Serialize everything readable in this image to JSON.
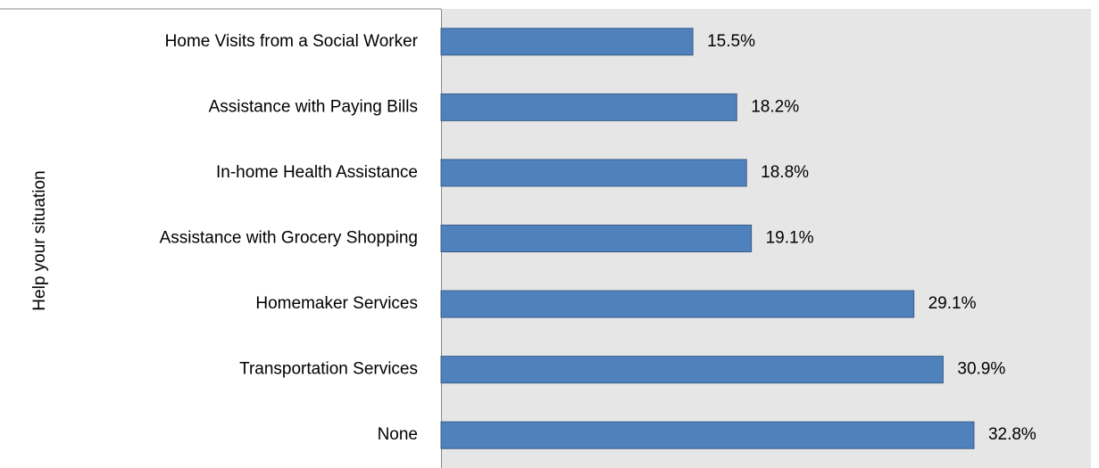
{
  "chart_data": {
    "type": "bar",
    "orientation": "horizontal",
    "y_label": "Help your situation",
    "categories": [
      "Home Visits from a Social Worker",
      "Assistance with Paying Bills",
      "In-home Health Assistance",
      "Assistance with Grocery Shopping",
      "Homemaker Services",
      "Transportation Services",
      "None"
    ],
    "values": [
      15.5,
      18.2,
      18.8,
      19.1,
      29.1,
      30.9,
      32.8
    ],
    "value_labels": [
      "15.5%",
      "18.2%",
      "18.8%",
      "19.1%",
      "29.1%",
      "30.9%",
      "32.8%"
    ],
    "color": "#4f81bd",
    "xlim": [
      0,
      40
    ]
  }
}
